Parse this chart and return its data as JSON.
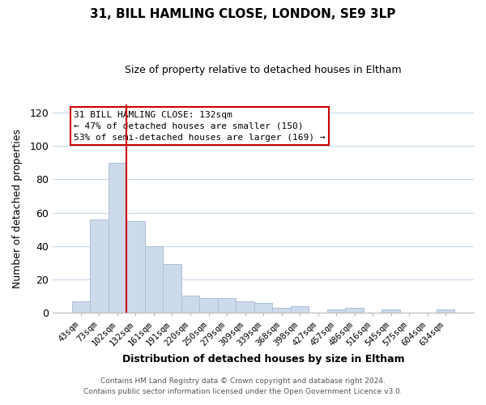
{
  "title": "31, BILL HAMLING CLOSE, LONDON, SE9 3LP",
  "subtitle": "Size of property relative to detached houses in Eltham",
  "xlabel": "Distribution of detached houses by size in Eltham",
  "ylabel": "Number of detached properties",
  "bar_labels": [
    "43sqm",
    "73sqm",
    "102sqm",
    "132sqm",
    "161sqm",
    "191sqm",
    "220sqm",
    "250sqm",
    "279sqm",
    "309sqm",
    "339sqm",
    "368sqm",
    "398sqm",
    "427sqm",
    "457sqm",
    "486sqm",
    "516sqm",
    "545sqm",
    "575sqm",
    "604sqm",
    "634sqm"
  ],
  "bar_values": [
    7,
    56,
    90,
    55,
    40,
    29,
    10,
    9,
    9,
    7,
    6,
    3,
    4,
    0,
    2,
    3,
    0,
    2,
    0,
    0,
    2
  ],
  "bar_color": "#cddaeb",
  "bar_edge_color": "#aabfd8",
  "vline_color": "#cc0000",
  "ylim": [
    0,
    125
  ],
  "yticks": [
    0,
    20,
    40,
    60,
    80,
    100,
    120
  ],
  "annotation_line1": "31 BILL HAMLING CLOSE: 132sqm",
  "annotation_line2": "← 47% of detached houses are smaller (150)",
  "annotation_line3": "53% of semi-detached houses are larger (169) →",
  "footer_line1": "Contains HM Land Registry data © Crown copyright and database right 2024.",
  "footer_line2": "Contains public sector information licensed under the Open Government Licence v3.0.",
  "background_color": "#ffffff",
  "grid_color": "#c8d8e8"
}
